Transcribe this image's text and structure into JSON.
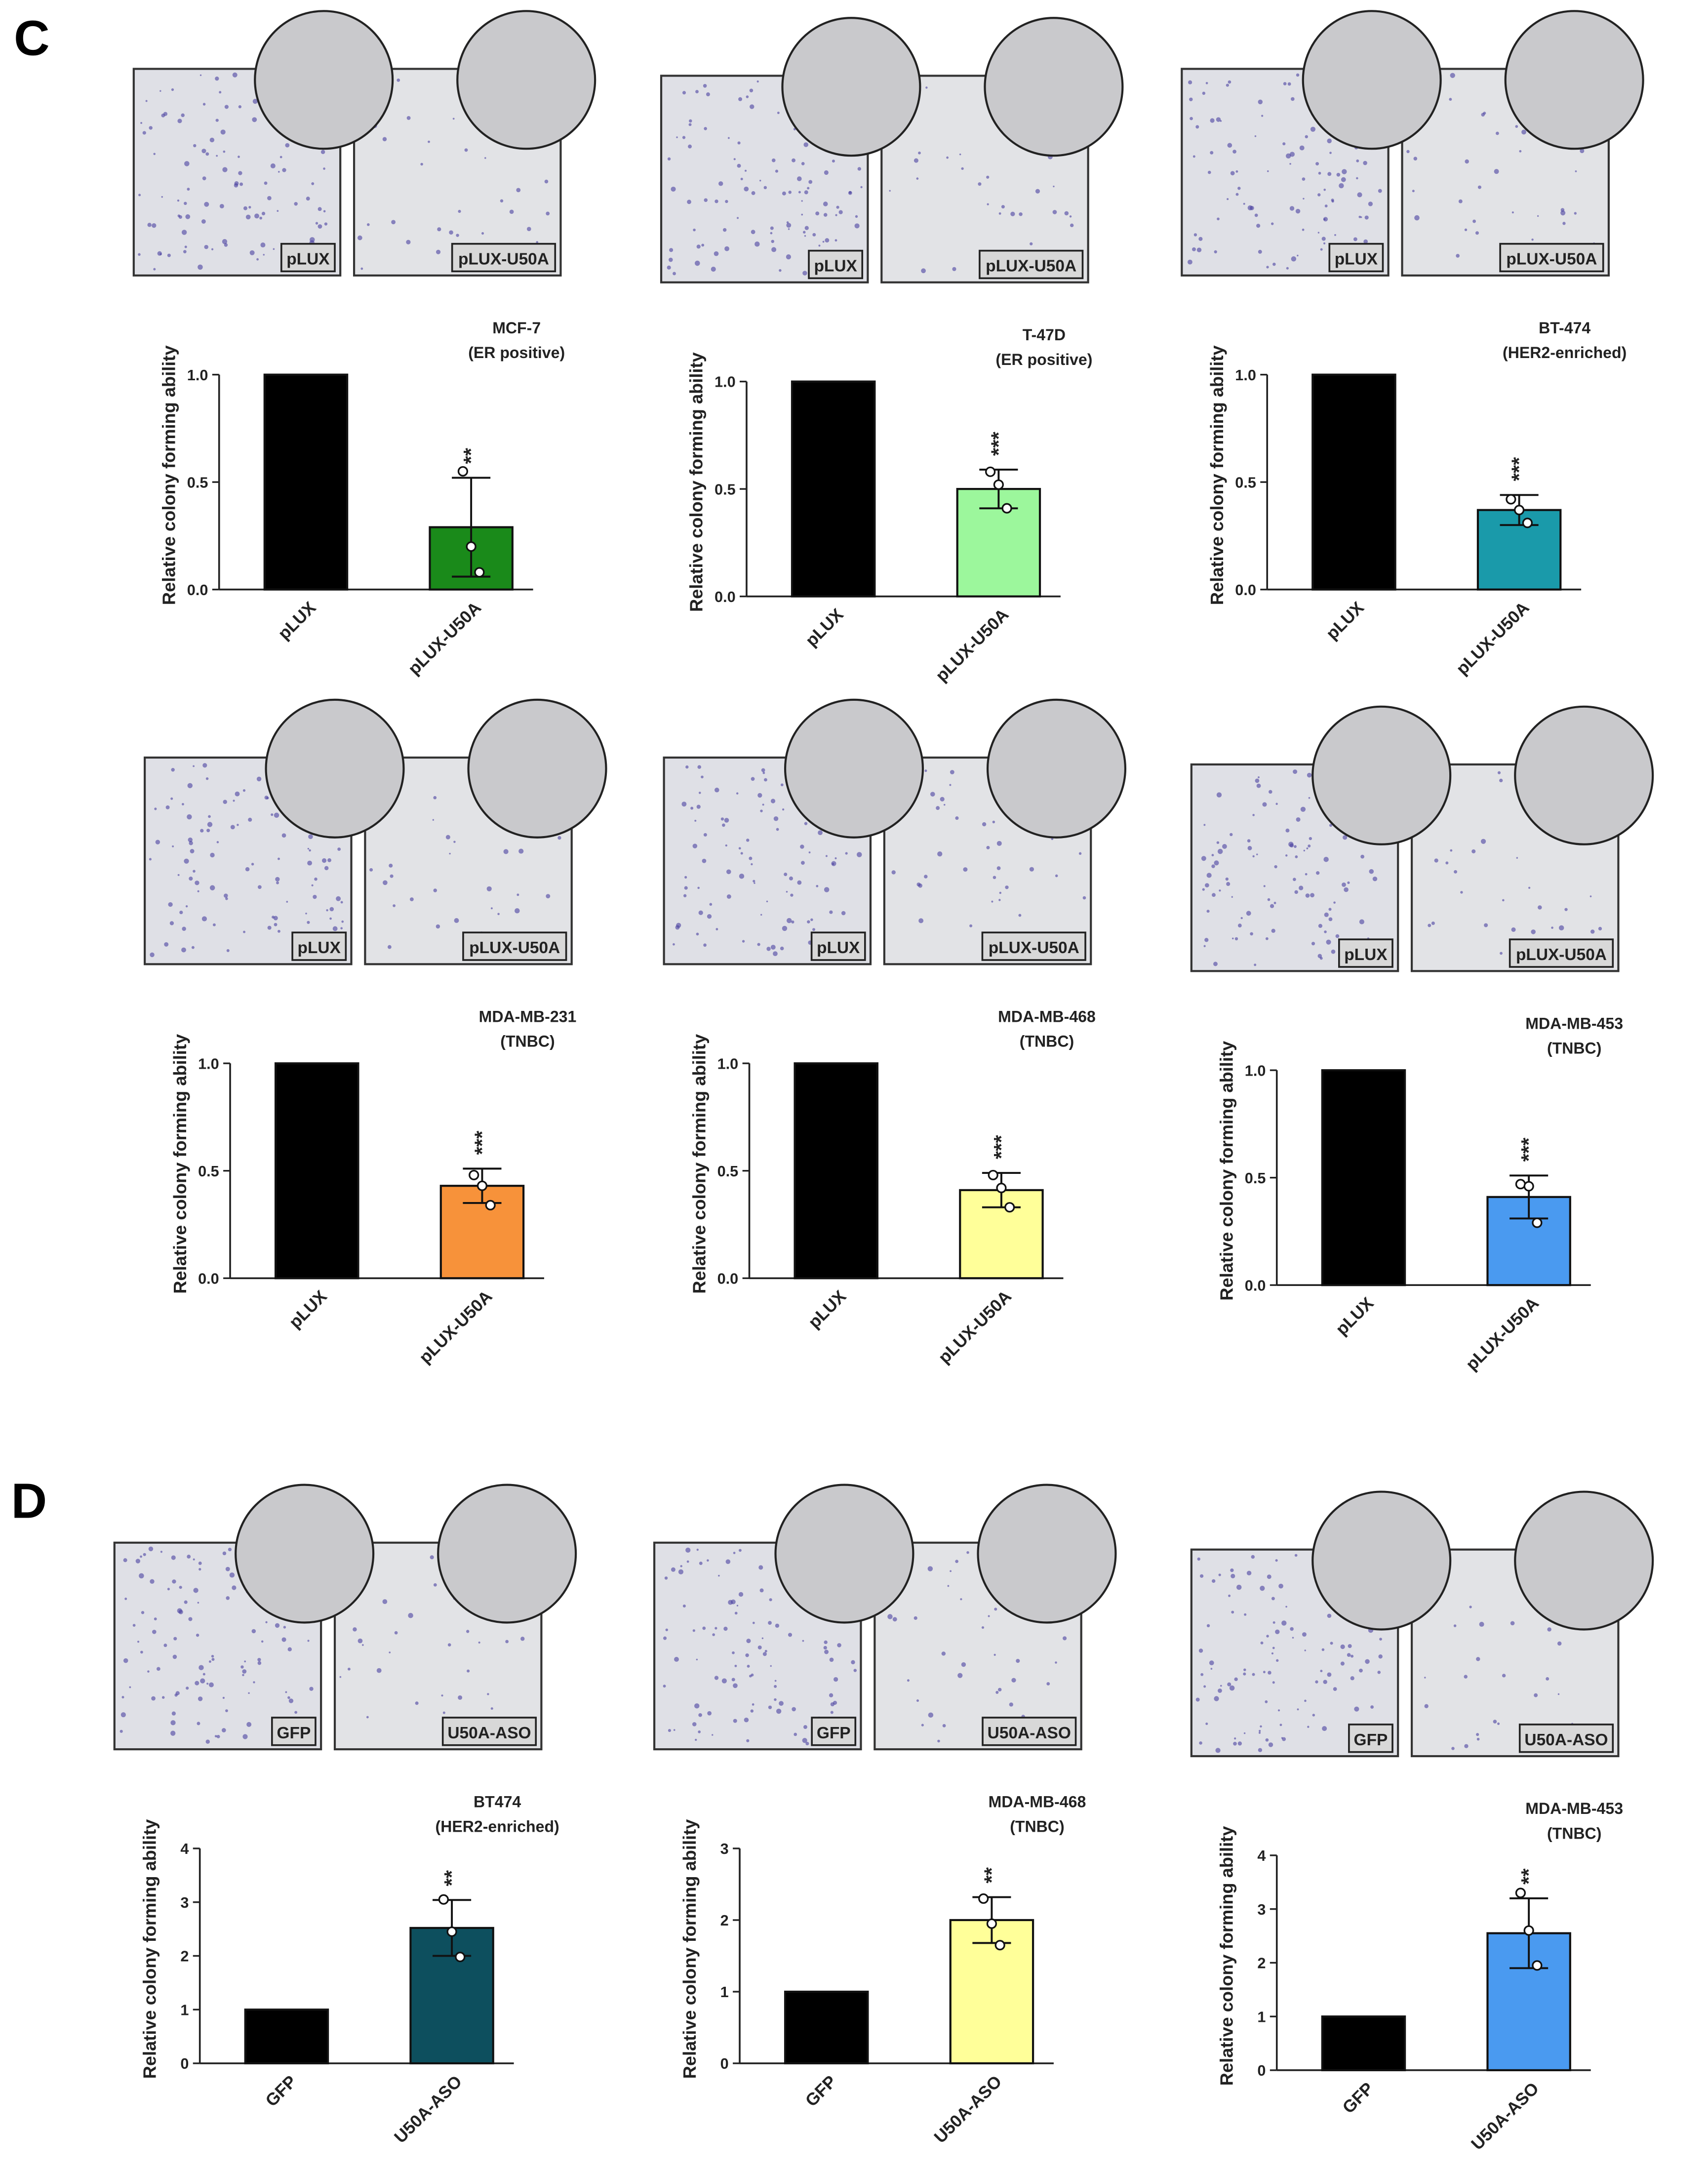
{
  "panel_labels": [
    "C",
    "D"
  ],
  "chart_data": [
    {
      "type": "bar",
      "title": "MCF-7",
      "subtitle": "(ER positive)",
      "ylabel": "Relative colony forming ability",
      "image_labels": [
        "pLUX",
        "pLUX-U50A"
      ],
      "categories": [
        "pLUX",
        "pLUX-U50A"
      ],
      "values": [
        1.0,
        0.29
      ],
      "errors": [
        null,
        0.23
      ],
      "replicates": [
        null,
        [
          0.55,
          0.2,
          0.08
        ]
      ],
      "annotation": "**",
      "colors": [
        "#000000",
        "#1a8a1a"
      ],
      "ylim": [
        0,
        1.0
      ],
      "yticks": [
        {
          "value": 0,
          "label": "0.0"
        },
        {
          "value": 0.5,
          "label": "0.5"
        },
        {
          "value": 1.0,
          "label": "1.0"
        }
      ]
    },
    {
      "type": "bar",
      "title": "T-47D",
      "subtitle": "(ER positive)",
      "ylabel": "Relative colony forming ability",
      "image_labels": [
        "pLUX",
        "pLUX-U50A"
      ],
      "categories": [
        "pLUX",
        "pLUX-U50A"
      ],
      "values": [
        1.0,
        0.5
      ],
      "errors": [
        null,
        0.09
      ],
      "replicates": [
        null,
        [
          0.58,
          0.52,
          0.41
        ]
      ],
      "annotation": "***",
      "colors": [
        "#000000",
        "#9cf79c"
      ],
      "ylim": [
        0,
        1.0
      ],
      "yticks": [
        {
          "value": 0,
          "label": "0.0"
        },
        {
          "value": 0.5,
          "label": "0.5"
        },
        {
          "value": 1.0,
          "label": "1.0"
        }
      ]
    },
    {
      "type": "bar",
      "title": "BT-474",
      "subtitle": "(HER2-enriched)",
      "ylabel": "Relative colony forming ability",
      "image_labels": [
        "pLUX",
        "pLUX-U50A"
      ],
      "categories": [
        "pLUX",
        "pLUX-U50A"
      ],
      "values": [
        1.0,
        0.37
      ],
      "errors": [
        null,
        0.07
      ],
      "replicates": [
        null,
        [
          0.42,
          0.37,
          0.31
        ]
      ],
      "annotation": "***",
      "colors": [
        "#000000",
        "#1a9aaa"
      ],
      "ylim": [
        0,
        1.0
      ],
      "yticks": [
        {
          "value": 0,
          "label": "0.0"
        },
        {
          "value": 0.5,
          "label": "0.5"
        },
        {
          "value": 1.0,
          "label": "1.0"
        }
      ]
    },
    {
      "type": "bar",
      "title": "MDA-MB-231",
      "subtitle": "(TNBC)",
      "ylabel": "Relative colony forming ability",
      "image_labels": [
        "pLUX",
        "pLUX-U50A"
      ],
      "categories": [
        "pLUX",
        "pLUX-U50A"
      ],
      "values": [
        1.0,
        0.43
      ],
      "errors": [
        null,
        0.08
      ],
      "replicates": [
        null,
        [
          0.48,
          0.43,
          0.34
        ]
      ],
      "annotation": "***",
      "colors": [
        "#000000",
        "#f7923a"
      ],
      "ylim": [
        0,
        1.0
      ],
      "yticks": [
        {
          "value": 0,
          "label": "0.0"
        },
        {
          "value": 0.5,
          "label": "0.5"
        },
        {
          "value": 1.0,
          "label": "1.0"
        }
      ]
    },
    {
      "type": "bar",
      "title": "MDA-MB-468",
      "subtitle": "(TNBC)",
      "ylabel": "Relative colony forming ability",
      "image_labels": [
        "pLUX",
        "pLUX-U50A"
      ],
      "categories": [
        "pLUX",
        "pLUX-U50A"
      ],
      "values": [
        1.0,
        0.41
      ],
      "errors": [
        null,
        0.08
      ],
      "replicates": [
        null,
        [
          0.48,
          0.42,
          0.33
        ]
      ],
      "annotation": "***",
      "colors": [
        "#000000",
        "#ffff99"
      ],
      "ylim": [
        0,
        1.0
      ],
      "yticks": [
        {
          "value": 0,
          "label": "0.0"
        },
        {
          "value": 0.5,
          "label": "0.5"
        },
        {
          "value": 1.0,
          "label": "1.0"
        }
      ]
    },
    {
      "type": "bar",
      "title": "MDA-MB-453",
      "subtitle": "(TNBC)",
      "ylabel": "Relative colony forming ability",
      "image_labels": [
        "pLUX",
        "pLUX-U50A"
      ],
      "categories": [
        "pLUX",
        "pLUX-U50A"
      ],
      "values": [
        1.0,
        0.41
      ],
      "errors": [
        null,
        0.1
      ],
      "replicates": [
        null,
        [
          0.47,
          0.46,
          0.29
        ]
      ],
      "annotation": "***",
      "colors": [
        "#000000",
        "#4a9af0"
      ],
      "ylim": [
        0,
        1.0
      ],
      "yticks": [
        {
          "value": 0,
          "label": "0.0"
        },
        {
          "value": 0.5,
          "label": "0.5"
        },
        {
          "value": 1.0,
          "label": "1.0"
        }
      ]
    },
    {
      "type": "bar",
      "title": "BT474",
      "subtitle": "(HER2-enriched)",
      "ylabel": "Relative colony forming ability",
      "image_labels": [
        "GFP",
        "U50A-ASO"
      ],
      "categories": [
        "GFP",
        "U50A-ASO"
      ],
      "values": [
        1.0,
        2.52
      ],
      "errors": [
        null,
        0.52
      ],
      "replicates": [
        null,
        [
          3.05,
          2.45,
          1.98
        ]
      ],
      "annotation": "**",
      "colors": [
        "#000000",
        "#0d4f5e"
      ],
      "ylim": [
        0,
        4
      ],
      "yticks": [
        0,
        1,
        2,
        3,
        4
      ]
    },
    {
      "type": "bar",
      "title": "MDA-MB-468",
      "subtitle": "(TNBC)",
      "ylabel": "Relative colony forming ability",
      "image_labels": [
        "GFP",
        "U50A-ASO"
      ],
      "categories": [
        "GFP",
        "U50A-ASO"
      ],
      "values": [
        1.0,
        2.0
      ],
      "errors": [
        null,
        0.32
      ],
      "replicates": [
        null,
        [
          2.3,
          1.95,
          1.65
        ]
      ],
      "annotation": "**",
      "colors": [
        "#000000",
        "#ffff99"
      ],
      "ylim": [
        0,
        3
      ],
      "yticks": [
        0,
        1,
        2,
        3
      ]
    },
    {
      "type": "bar",
      "title": "MDA-MB-453",
      "subtitle": "(TNBC)",
      "ylabel": "Relative colony forming ability",
      "image_labels": [
        "GFP",
        "U50A-ASO"
      ],
      "categories": [
        "GFP",
        "U50A-ASO"
      ],
      "values": [
        1.0,
        2.55
      ],
      "errors": [
        null,
        0.65
      ],
      "replicates": [
        null,
        [
          3.3,
          2.6,
          1.95
        ]
      ],
      "annotation": "**",
      "colors": [
        "#000000",
        "#4a9af0"
      ],
      "ylim": [
        0,
        4
      ],
      "yticks": [
        0,
        1,
        2,
        3,
        4
      ]
    }
  ]
}
